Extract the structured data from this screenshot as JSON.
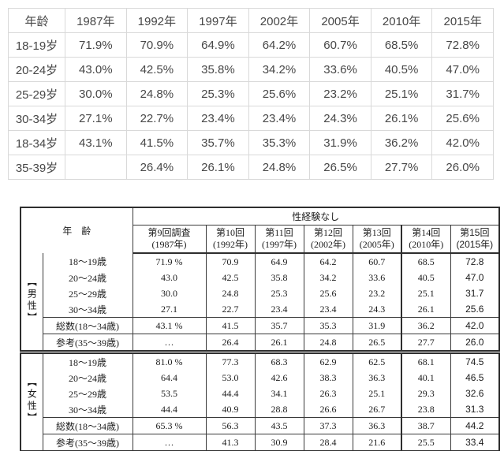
{
  "top_table": {
    "headers": [
      "年龄",
      "1987年",
      "1992年",
      "1997年",
      "2002年",
      "2005年",
      "2010年",
      "2015年"
    ],
    "rows": [
      {
        "label": "18-19岁",
        "values": [
          "71.9%",
          "70.9%",
          "64.9%",
          "64.2%",
          "60.7%",
          "68.5%",
          "72.8%"
        ]
      },
      {
        "label": "20-24岁",
        "values": [
          "43.0%",
          "42.5%",
          "35.8%",
          "34.2%",
          "33.6%",
          "40.5%",
          "47.0%"
        ]
      },
      {
        "label": "25-29岁",
        "values": [
          "30.0%",
          "24.8%",
          "25.3%",
          "25.6%",
          "23.2%",
          "25.1%",
          "31.7%"
        ]
      },
      {
        "label": "30-34岁",
        "values": [
          "27.1%",
          "22.7%",
          "23.4%",
          "23.4%",
          "24.3%",
          "26.1%",
          "25.6%"
        ]
      },
      {
        "label": "18-34岁",
        "values": [
          "43.1%",
          "41.5%",
          "35.7%",
          "35.3%",
          "31.9%",
          "36.2%",
          "42.0%"
        ]
      },
      {
        "label": "35-39岁",
        "values": [
          "",
          "26.4%",
          "26.1%",
          "24.8%",
          "26.5%",
          "27.7%",
          "26.0%"
        ]
      }
    ]
  },
  "bottom_table": {
    "age_header": "年　齢",
    "span_header": "性経験なし",
    "surveys": [
      {
        "line1": "第9回調査",
        "line2": "(1987年)"
      },
      {
        "line1": "第10回",
        "line2": "(1992年)"
      },
      {
        "line1": "第11回",
        "line2": "(1997年)"
      },
      {
        "line1": "第12回",
        "line2": "(2002年)"
      },
      {
        "line1": "第13回",
        "line2": "(2005年)"
      },
      {
        "line1": "第14回",
        "line2": "(2010年)"
      },
      {
        "line1": "第15回",
        "line2": "(2015年)"
      }
    ],
    "male": {
      "gender": "【男性】",
      "rows": [
        {
          "label": "18〜19歳",
          "values": [
            "71.9 %",
            "70.9",
            "64.9",
            "64.2",
            "60.7",
            "68.5",
            "72.8"
          ]
        },
        {
          "label": "20〜24歳",
          "values": [
            "43.0",
            "42.5",
            "35.8",
            "34.2",
            "33.6",
            "40.5",
            "47.0"
          ]
        },
        {
          "label": "25〜29歳",
          "values": [
            "30.0",
            "24.8",
            "25.3",
            "25.6",
            "23.2",
            "25.1",
            "31.7"
          ]
        },
        {
          "label": "30〜34歳",
          "values": [
            "27.1",
            "22.7",
            "23.4",
            "23.4",
            "24.3",
            "26.1",
            "25.6"
          ]
        },
        {
          "label": "総数(18〜34歳)",
          "values": [
            "43.1 %",
            "41.5",
            "35.7",
            "35.3",
            "31.9",
            "36.2",
            "42.0"
          ]
        },
        {
          "label": "参考(35〜39歳)",
          "values": [
            "…",
            "26.4",
            "26.1",
            "24.8",
            "26.5",
            "27.7",
            "26.0"
          ]
        }
      ]
    },
    "female": {
      "gender": "【女性】",
      "rows": [
        {
          "label": "18〜19歳",
          "values": [
            "81.0 %",
            "77.3",
            "68.3",
            "62.9",
            "62.5",
            "68.1",
            "74.5"
          ]
        },
        {
          "label": "20〜24歳",
          "values": [
            "64.4",
            "53.0",
            "42.6",
            "38.3",
            "36.3",
            "40.1",
            "46.5"
          ]
        },
        {
          "label": "25〜29歳",
          "values": [
            "53.5",
            "44.4",
            "34.1",
            "26.3",
            "25.1",
            "29.3",
            "32.6"
          ]
        },
        {
          "label": "30〜34歳",
          "values": [
            "44.4",
            "40.9",
            "28.8",
            "26.6",
            "26.7",
            "23.8",
            "31.3"
          ]
        },
        {
          "label": "総数(18〜34歳)",
          "values": [
            "65.3 %",
            "56.3",
            "43.5",
            "37.3",
            "36.3",
            "38.7",
            "44.2"
          ]
        },
        {
          "label": "参考(35〜39歳)",
          "values": [
            "…",
            "41.3",
            "30.9",
            "28.4",
            "21.6",
            "25.5",
            "33.4"
          ]
        }
      ]
    }
  },
  "colors": {
    "scan_border": "#2e2e2e",
    "light_border": "#d9d9d9",
    "scan_text": "#1c1c1c",
    "web_text": "#474747"
  }
}
